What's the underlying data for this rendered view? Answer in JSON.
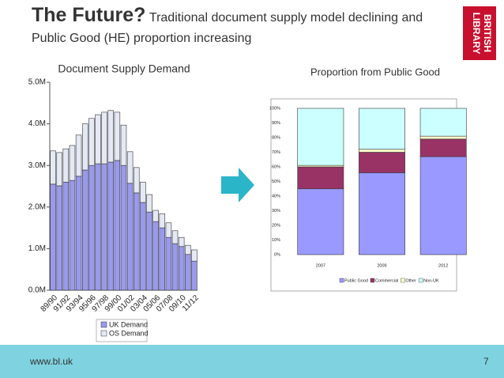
{
  "slide": {
    "title": "The Future?",
    "subtitle": "Traditional document supply model declining and Public Good (HE) proportion increasing",
    "logo": {
      "line1": "BRITISH",
      "line2": "LIBRARY"
    },
    "footer": "www.bl.uk",
    "page_number": "7"
  },
  "chart_data": [
    {
      "type": "bar",
      "stacked": true,
      "title": "Document Supply Demand",
      "categories": [
        "89/90",
        null,
        "91/92",
        null,
        "93/94",
        null,
        "95/96",
        null,
        "97/98",
        null,
        "99/00",
        null,
        "01/02",
        null,
        "03/04",
        null,
        "05/06",
        null,
        "07/08",
        null,
        "09/10",
        null,
        "11/12"
      ],
      "series": [
        {
          "name": "UK Demand",
          "color": "#9999ee",
          "values": [
            2.55,
            2.51,
            2.6,
            2.64,
            2.74,
            2.89,
            3.0,
            3.04,
            3.04,
            3.08,
            3.12,
            3.0,
            2.57,
            2.34,
            2.11,
            1.88,
            1.65,
            1.5,
            1.27,
            1.12,
            1.05,
            0.86,
            0.7
          ]
        },
        {
          "name": "OS Demand",
          "color": "#e4e9f4",
          "values": [
            0.8,
            0.8,
            0.8,
            0.84,
            0.99,
            1.11,
            1.13,
            1.18,
            1.24,
            1.24,
            1.16,
            0.97,
            0.76,
            0.61,
            0.49,
            0.42,
            0.27,
            0.34,
            0.35,
            0.31,
            0.22,
            0.22,
            0.27
          ]
        }
      ],
      "ylim": [
        0,
        5
      ],
      "yticks": [
        {
          "value": 0,
          "label": "0.0M"
        },
        {
          "value": 1,
          "label": "1.0M"
        },
        {
          "value": 2,
          "label": "2.0M"
        },
        {
          "value": 3,
          "label": "3.0M"
        },
        {
          "value": 4,
          "label": "4.0M"
        },
        {
          "value": 5,
          "label": "5.0M"
        }
      ],
      "grid": false,
      "legend": "bottom"
    },
    {
      "type": "bar",
      "stacked": true,
      "title": "Proportion from Public Good",
      "categories": [
        "2007",
        "2009",
        "2012"
      ],
      "series": [
        {
          "name": "Public Good",
          "color": "#9999ff",
          "values": [
            45,
            56,
            67
          ]
        },
        {
          "name": "Commercial",
          "color": "#993366",
          "values": [
            15,
            14,
            12
          ]
        },
        {
          "name": "Other",
          "color": "#ffffcc",
          "values": [
            1,
            2,
            2
          ]
        },
        {
          "name": "Non-UK",
          "color": "#ccffff",
          "values": [
            39,
            28,
            19
          ]
        }
      ],
      "ylim": [
        0,
        100
      ],
      "yticks": [
        {
          "value": 0,
          "label": "0%"
        },
        {
          "value": 10,
          "label": "10%"
        },
        {
          "value": 20,
          "label": "20%"
        },
        {
          "value": 30,
          "label": "30%"
        },
        {
          "value": 40,
          "label": "40%"
        },
        {
          "value": 50,
          "label": "50%"
        },
        {
          "value": 60,
          "label": "60%"
        },
        {
          "value": 70,
          "label": "70%"
        },
        {
          "value": 80,
          "label": "80%"
        },
        {
          "value": 90,
          "label": "90%"
        },
        {
          "value": 100,
          "label": "100%"
        }
      ],
      "grid": false,
      "legend": "bottom"
    }
  ]
}
